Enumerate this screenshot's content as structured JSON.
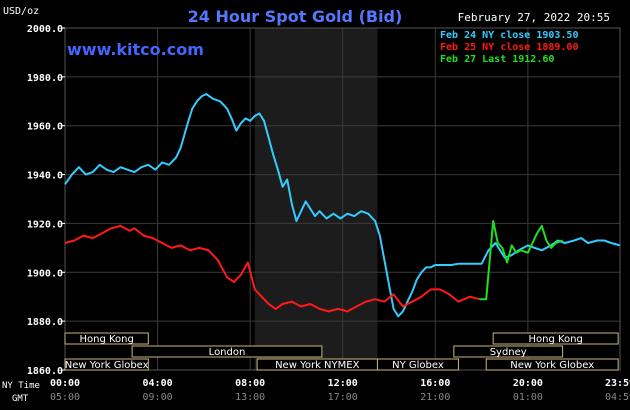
{
  "chart_data": {
    "type": "line",
    "title": "24 Hour Spot Gold (Bid)",
    "watermark": "www.kitco.com",
    "unit_label": "USD/oz",
    "date_label": "February 27, 2022 20:55",
    "ylim": [
      1860,
      2000
    ],
    "yticks": [
      "2000.0",
      "1980.0",
      "1960.0",
      "1940.0",
      "1920.0",
      "1900.0",
      "1880.0",
      "1860.0"
    ],
    "x_hours": [
      0,
      23.98
    ],
    "nytime_label": "NY Time",
    "gmt_label": "GMT",
    "nytime_ticks": [
      "00:00",
      "04:00",
      "08:00",
      "12:00",
      "16:00",
      "20:00",
      "23:59"
    ],
    "gmt_ticks": [
      "05:00",
      "09:00",
      "13:00",
      "17:00",
      "21:00",
      "01:00",
      "04:59"
    ],
    "shaded_region_hours": [
      8.2,
      13.5
    ],
    "colors": {
      "background": "#000000",
      "grid": "#3a3a3a",
      "feb24": "#33ccff",
      "feb25": "#ff1a1a",
      "feb27": "#22dd22",
      "title": "#5577ff",
      "text": "#ffffff",
      "shade": "#1c1c1c",
      "session_fill": "#000000",
      "session_border": "#c8b878"
    },
    "legend": {
      "placement": "top-right",
      "entries": [
        {
          "label": "Feb 24 NY close 1903.50",
          "color": "#33ccff"
        },
        {
          "label": "Feb 25 NY close 1889.00",
          "color": "#ff1a1a"
        },
        {
          "label": "Feb 27 Last 1912.60",
          "color": "#22dd22"
        }
      ]
    },
    "sessions": [
      {
        "name": "Hong Kong",
        "start": 0,
        "end": 3.6,
        "row": 0
      },
      {
        "name": "London",
        "start": 2.9,
        "end": 11.1,
        "row": 1
      },
      {
        "name": "New York Globex",
        "start": 0,
        "end": 3.6,
        "row": 2
      },
      {
        "name": "New York NYMEX",
        "start": 8.3,
        "end": 13.5,
        "row": 2
      },
      {
        "name": "NY Globex",
        "start": 13.5,
        "end": 17.0,
        "row": 2
      },
      {
        "name": "Hong Kong",
        "start": 18.5,
        "end": 23.9,
        "row": 0
      },
      {
        "name": "Sydney",
        "start": 16.8,
        "end": 21.5,
        "row": 1
      },
      {
        "name": "New York Globex",
        "start": 18.2,
        "end": 23.9,
        "row": 2
      }
    ],
    "series": [
      {
        "name": "Feb 24 NY close 1903.50",
        "color": "#33ccff",
        "x": [
          0,
          0.3,
          0.6,
          0.9,
          1.2,
          1.5,
          1.8,
          2.1,
          2.4,
          2.7,
          3.0,
          3.3,
          3.6,
          3.9,
          4.2,
          4.5,
          4.8,
          5.0,
          5.3,
          5.5,
          5.7,
          5.9,
          6.1,
          6.4,
          6.7,
          7.0,
          7.2,
          7.4,
          7.6,
          7.8,
          8.0,
          8.2,
          8.4,
          8.6,
          8.8,
          9.0,
          9.2,
          9.4,
          9.6,
          9.8,
          10.0,
          10.2,
          10.4,
          10.6,
          10.8,
          11.0,
          11.3,
          11.6,
          11.9,
          12.2,
          12.5,
          12.8,
          13.1,
          13.4,
          13.6,
          13.8,
          14.0,
          14.2,
          14.4,
          14.6,
          14.8,
          15.0,
          15.2,
          15.4,
          15.6,
          15.8,
          16.0,
          16.2,
          16.4,
          16.7,
          17.0,
          17.5,
          18.0,
          18.3,
          18.6,
          19.0,
          19.3,
          19.6,
          20.0,
          20.3,
          20.6,
          21.0,
          21.3,
          21.6,
          22.0,
          22.3,
          22.6,
          23.0,
          23.3,
          23.6,
          23.98
        ],
        "values": [
          1936,
          1940,
          1943,
          1940,
          1941,
          1944,
          1942,
          1941,
          1943,
          1942,
          1941,
          1943,
          1944,
          1942,
          1945,
          1944,
          1947,
          1951,
          1961,
          1967,
          1970,
          1972,
          1973,
          1971,
          1970,
          1967,
          1963,
          1958,
          1961,
          1963,
          1962,
          1964,
          1965,
          1962,
          1955,
          1948,
          1942,
          1935,
          1938,
          1928,
          1921,
          1925,
          1929,
          1926,
          1923,
          1925,
          1922,
          1924,
          1922,
          1924,
          1923,
          1925,
          1924,
          1921,
          1915,
          1905,
          1895,
          1885,
          1882,
          1884,
          1888,
          1892,
          1897,
          1900,
          1902,
          1902,
          1903,
          1903,
          1903,
          1903,
          1903.5,
          1903.5,
          1903.5,
          1909,
          1912,
          1906,
          1907,
          1909,
          1911,
          1910,
          1909,
          1911,
          1913,
          1912,
          1913,
          1914,
          1912,
          1913,
          1913,
          1912,
          1911
        ]
      },
      {
        "name": "Feb 25 NY close 1889.00",
        "color": "#ff1a1a",
        "x": [
          0,
          0.4,
          0.8,
          1.2,
          1.6,
          2.0,
          2.4,
          2.8,
          3.0,
          3.4,
          3.8,
          4.2,
          4.6,
          5.0,
          5.4,
          5.8,
          6.2,
          6.6,
          7.0,
          7.3,
          7.6,
          7.9,
          8.2,
          8.5,
          8.8,
          9.1,
          9.4,
          9.8,
          10.2,
          10.6,
          11.0,
          11.4,
          11.8,
          12.2,
          12.6,
          13.0,
          13.4,
          13.8,
          14.2,
          14.6,
          15.0,
          15.4,
          15.8,
          16.2,
          16.6,
          17.0,
          17.5,
          17.9
        ],
        "values": [
          1912,
          1913,
          1915,
          1914,
          1916,
          1918,
          1919,
          1917,
          1918,
          1915,
          1914,
          1912,
          1910,
          1911,
          1909,
          1910,
          1909,
          1905,
          1898,
          1896,
          1899,
          1904,
          1893,
          1890,
          1887,
          1885,
          1887,
          1888,
          1886,
          1887,
          1885,
          1884,
          1885,
          1884,
          1886,
          1888,
          1889,
          1888,
          1891,
          1886,
          1888,
          1890,
          1893,
          1893,
          1891,
          1888,
          1890,
          1889
        ]
      },
      {
        "name": "Feb 27 Last 1912.60",
        "color": "#22dd22",
        "x": [
          17.9,
          18.2,
          18.35,
          18.5,
          18.7,
          18.9,
          19.1,
          19.3,
          19.5,
          19.7,
          20.0,
          20.2,
          20.4,
          20.6,
          20.8,
          21.0,
          21.2,
          21.5
        ],
        "values": [
          1889,
          1889,
          1905,
          1921,
          1912,
          1910,
          1904,
          1911,
          1908,
          1909,
          1908,
          1912,
          1916,
          1919,
          1913,
          1910,
          1912,
          1913
        ]
      }
    ]
  }
}
